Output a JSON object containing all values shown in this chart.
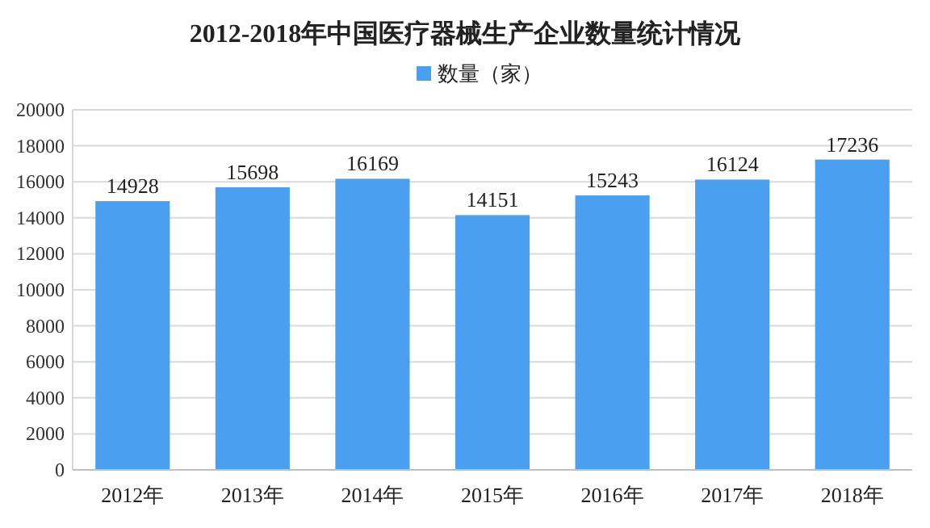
{
  "chart_data": {
    "type": "bar",
    "title": "2012-2018年中国医疗器械生产企业数量统计情况",
    "categories": [
      "2012年",
      "2013年",
      "2014年",
      "2015年",
      "2016年",
      "2017年",
      "2018年"
    ],
    "series": [
      {
        "name": "数量（家）",
        "color": "#4a9ff0",
        "values": [
          14928,
          15698,
          16169,
          14151,
          15243,
          16124,
          17236
        ]
      }
    ],
    "ylim": [
      0,
      20000
    ],
    "yticks": [
      0,
      2000,
      4000,
      6000,
      8000,
      10000,
      12000,
      14000,
      16000,
      18000,
      20000
    ],
    "grid": "y",
    "legend": "top",
    "data_labels": true
  }
}
